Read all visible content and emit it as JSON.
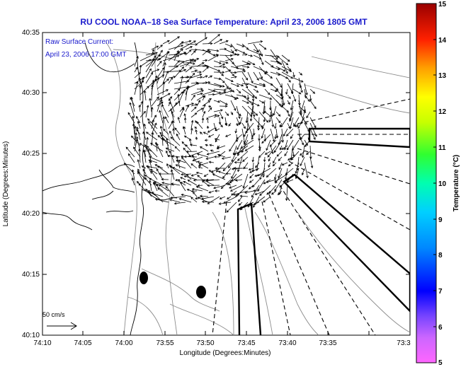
{
  "title": "RU COOL  NOAA–18  Sea Surface Temperature:  April 23, 2006 1805 GMT",
  "legend": {
    "line1": "Raw Surface Current:",
    "line2": "April 23, 2006 17:00 GMT"
  },
  "scale_label": "50 cm/s",
  "xlabel": "Longitude (Degrees:Minutes)",
  "ylabel": "Latitude (Degrees:Minutes)",
  "xticks": [
    "74:10",
    "74:05",
    "74:00",
    "73:55",
    "73:50",
    "73:45",
    "73:40",
    "73:35",
    "73:3"
  ],
  "yticks": [
    "40:35",
    "40:30",
    "40:25",
    "40:20",
    "40:15",
    "40:10"
  ],
  "colorbar": {
    "label": "Temperature (°C)",
    "ticks": [
      "15",
      "14",
      "13",
      "12",
      "11",
      "10",
      "9",
      "8",
      "7",
      "6",
      "5"
    ],
    "range": [
      5,
      15
    ]
  },
  "colors": {
    "title": "#1a1acc",
    "land_outline": "#000000",
    "contours": "#888888",
    "arrows": "#000000"
  }
}
